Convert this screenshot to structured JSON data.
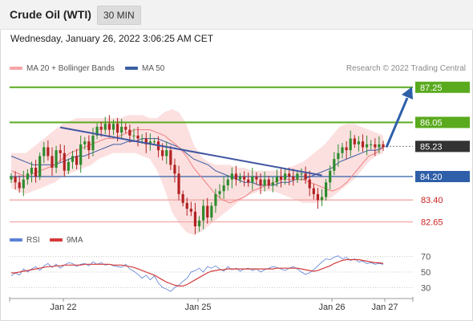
{
  "header": {
    "title": "Crude Oil (WTI)",
    "timeframe": "30 MIN"
  },
  "datetime": "Wednesday, January 26, 2022 3:06:25 AM CET",
  "legend": {
    "ma20_label": "MA 20 + Bollinger Bands",
    "ma50_label": "MA 50",
    "copyright": "Research © 2022 Trading Central",
    "rsi_label": "RSI",
    "ma9_label": "9MA"
  },
  "colors": {
    "bollinger": "#fbd5d5",
    "ma20": "#f08080",
    "ma50": "#3b5fa0",
    "resistance": "#5aaa1e",
    "support_blue": "#2e5fa8",
    "support_red": "#f4a6a6",
    "candle_up": "#2e8b2e",
    "candle_down": "#b22222",
    "rsi": "#5b82d6",
    "ma9": "#d43a3a",
    "current": "#333333"
  },
  "chart_data": [
    {
      "type": "candlestick",
      "title": "Crude Oil (WTI)",
      "timeframe": "30 MIN",
      "x_ticks": [
        "Jan 22",
        "Jan 25",
        "Jan 26",
        "Jan 27"
      ],
      "ylim": [
        82.5,
        87.6
      ],
      "levels": [
        {
          "name": "resistance_2",
          "value": 87.25,
          "label": "87.25",
          "kind": "resistance"
        },
        {
          "name": "resistance_1",
          "value": 86.05,
          "label": "86.05",
          "kind": "resistance"
        },
        {
          "name": "last_price",
          "value": 85.23,
          "label": "85.23",
          "kind": "current"
        },
        {
          "name": "pivot",
          "value": 84.2,
          "label": "84.20",
          "kind": "pivot"
        },
        {
          "name": "support_1",
          "value": 83.4,
          "label": "83.40",
          "kind": "support"
        },
        {
          "name": "support_2",
          "value": 82.65,
          "label": "82.65",
          "kind": "support"
        }
      ],
      "close": [
        84.2,
        84.0,
        83.8,
        84.1,
        84.3,
        84.5,
        84.2,
        84.9,
        85.2,
        84.9,
        84.5,
        85.1,
        85.0,
        84.4,
        84.7,
        84.9,
        84.6,
        85.3,
        85.4,
        85.1,
        85.6,
        85.9,
        85.8,
        86.0,
        85.8,
        86.0,
        85.7,
        85.9,
        85.8,
        85.6,
        85.6,
        85.5,
        85.5,
        85.3,
        85.4,
        85.4,
        85.1,
        84.9,
        85.1,
        84.6,
        84.3,
        83.6,
        83.3,
        83.1,
        83.0,
        82.5,
        82.7,
        83.2,
        82.8,
        83.2,
        83.6,
        83.7,
        83.9,
        84.1,
        84.3,
        84.1,
        84.2,
        84.1,
        84.0,
        84.2,
        84.1,
        83.9,
        84.1,
        83.9,
        84.0,
        84.2,
        84.1,
        84.3,
        84.2,
        84.1,
        84.3,
        84.3,
        84.1,
        83.8,
        83.6,
        83.4,
        83.5,
        84.0,
        84.4,
        84.8,
        85.0,
        85.2,
        85.1,
        85.5,
        85.3,
        85.4,
        85.2,
        85.3,
        85.3,
        85.2,
        85.3,
        85.2
      ],
      "trendline": [
        [
          12,
          85.88
        ],
        [
          76,
          84.24
        ]
      ],
      "ma50": [
        84.9,
        84.8,
        84.7,
        84.6,
        84.6,
        84.6,
        84.6,
        84.7,
        84.8,
        84.9,
        84.9,
        85.0,
        85.1,
        85.2,
        85.3,
        85.3,
        85.4,
        85.4,
        85.5,
        85.5,
        85.5,
        85.4,
        85.3,
        85.2,
        85.0,
        84.8,
        84.7,
        84.6,
        84.4,
        84.3,
        84.2,
        84.1,
        84.0,
        84.0,
        83.9,
        83.9,
        83.9,
        84.0,
        84.0,
        84.1,
        84.1,
        84.2,
        84.3,
        84.4,
        84.5,
        84.7,
        84.8,
        84.9,
        85.0,
        85.1,
        85.1,
        85.2
      ],
      "ma20": [
        84.4,
        84.3,
        84.2,
        84.3,
        84.4,
        84.5,
        84.6,
        84.8,
        85.0,
        85.1,
        85.2,
        85.3,
        85.4,
        85.5,
        85.5,
        85.6,
        85.7,
        85.8,
        85.8,
        85.8,
        85.7,
        85.6,
        85.4,
        85.2,
        84.9,
        84.5,
        84.2,
        83.9,
        83.6,
        83.4,
        83.3,
        83.4,
        83.5,
        83.7,
        83.8,
        83.9,
        84.0,
        84.1,
        84.1,
        84.1,
        84.1,
        84.0,
        83.9,
        83.8,
        83.7,
        83.8,
        84.0,
        84.3,
        84.6,
        84.9,
        85.0,
        85.2
      ],
      "bb_upper": [
        85.0,
        85.0,
        85.0,
        85.2,
        85.4,
        85.6,
        85.8,
        86.0,
        86.1,
        86.2,
        86.2,
        86.2,
        86.2,
        86.2,
        86.2,
        86.2,
        86.3,
        86.3,
        86.3,
        86.2,
        86.2,
        86.4,
        86.5,
        86.4,
        86.0,
        85.3,
        84.9,
        84.7,
        84.6,
        84.6,
        84.6,
        84.5,
        84.5,
        84.4,
        84.4,
        84.4,
        84.4,
        84.4,
        84.5,
        84.6,
        84.7,
        84.9,
        85.1,
        85.3,
        85.6,
        85.9,
        86.0,
        86.0,
        85.9,
        85.8,
        85.7,
        85.6
      ],
      "bb_lower": [
        83.8,
        83.7,
        83.6,
        83.7,
        83.8,
        83.9,
        84.0,
        84.2,
        84.3,
        84.4,
        84.5,
        84.6,
        84.8,
        84.9,
        85.0,
        85.0,
        85.0,
        85.0,
        84.9,
        84.8,
        84.4,
        83.8,
        83.0,
        82.6,
        82.3,
        82.2,
        82.3,
        82.5,
        82.7,
        82.9,
        83.1,
        83.3,
        83.5,
        83.6,
        83.7,
        83.7,
        83.7,
        83.6,
        83.5,
        83.4,
        83.3,
        83.3,
        83.3,
        83.4,
        83.5,
        83.7,
        83.9,
        84.1,
        84.4,
        84.7,
        84.9,
        85.0
      ]
    },
    {
      "type": "line",
      "title": "RSI",
      "ylim": [
        20,
        80
      ],
      "y_ticks": [
        70,
        50,
        30
      ],
      "series": [
        {
          "name": "RSI",
          "values": [
            45,
            49,
            46,
            54,
            50,
            54,
            57,
            52,
            58,
            61,
            56,
            60,
            55,
            59,
            62,
            61,
            57,
            60,
            61,
            58,
            63,
            60,
            62,
            59,
            60,
            58,
            57,
            56,
            60,
            54,
            51,
            47,
            42,
            46,
            40,
            45,
            36,
            30,
            28,
            25,
            30,
            33,
            38,
            42,
            50,
            52,
            55,
            50,
            57,
            55,
            58,
            54,
            51,
            57,
            53,
            55,
            51,
            54,
            55,
            52,
            54,
            50,
            53,
            55,
            57,
            56,
            54,
            52,
            55,
            57,
            54,
            50,
            47,
            49,
            53,
            58,
            63,
            67,
            66,
            69,
            71,
            67,
            69,
            65,
            67,
            63,
            64,
            61,
            62,
            60,
            61,
            60
          ]
        },
        {
          "name": "9MA",
          "values": [
            49,
            49,
            50,
            51,
            52,
            53,
            54,
            55,
            56,
            57,
            57,
            58,
            58,
            59,
            59,
            59,
            59,
            59,
            60,
            60,
            60,
            60,
            60,
            60,
            60,
            59,
            59,
            59,
            58,
            57,
            56,
            54,
            52,
            50,
            48,
            46,
            43,
            40,
            37,
            35,
            33,
            32,
            32,
            34,
            37,
            40,
            43,
            46,
            49,
            51,
            52,
            53,
            53,
            54,
            54,
            54,
            54,
            54,
            54,
            54,
            54,
            54,
            54,
            54,
            54,
            55,
            55,
            55,
            55,
            55,
            55,
            54,
            53,
            52,
            51,
            52,
            54,
            56,
            58,
            61,
            63,
            65,
            66,
            66,
            66,
            66,
            65,
            64,
            63,
            62,
            62,
            61
          ]
        }
      ]
    }
  ]
}
